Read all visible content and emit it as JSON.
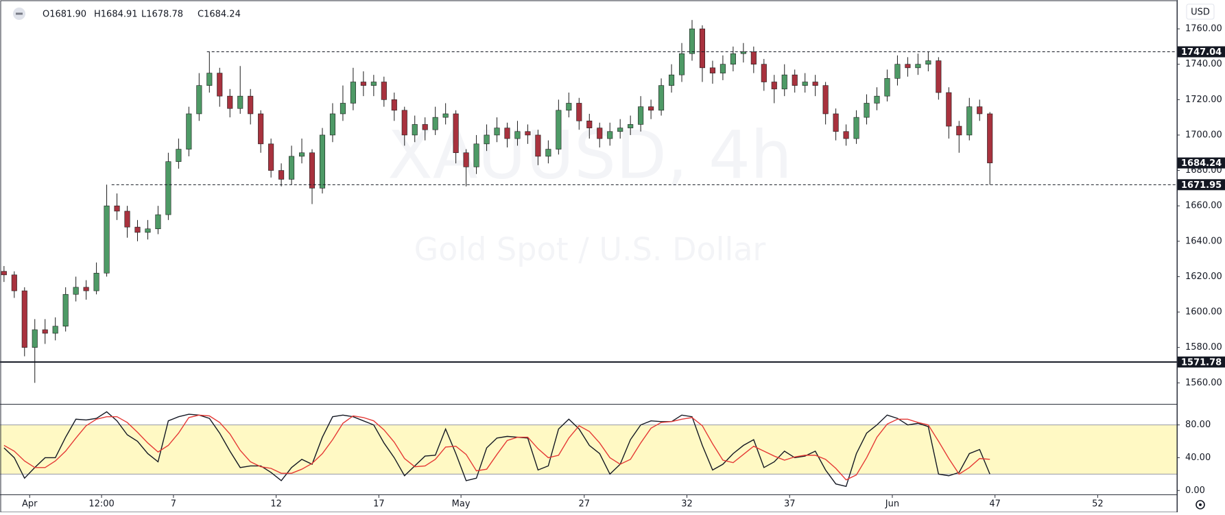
{
  "chart_data": [
    {
      "type": "candlestick",
      "title": "XAUUSD, 4h",
      "subtitle": "Gold Spot / U.S. Dollar",
      "currency": "USD",
      "ohlc_legend": [
        "O1681.90",
        "H1684.91",
        "L1678.78",
        "C1684.24"
      ],
      "x": [
        -1.25,
        -0.75,
        -0.25,
        0.25,
        0.75,
        1.25,
        1.75,
        2.25,
        2.75,
        3.25,
        3.75,
        4.25,
        4.75,
        5.25,
        5.75,
        6.25,
        6.75,
        7.25,
        7.75,
        8.25,
        8.75,
        9.25,
        9.75,
        10.25,
        10.75,
        11.25,
        11.75,
        12.25,
        12.75,
        13.25,
        13.75,
        14.25,
        14.75,
        15.25,
        15.75,
        16.25,
        16.75,
        17.25,
        17.75,
        18.25,
        18.75,
        19.25,
        19.75,
        20.25,
        20.75,
        21.25,
        21.75,
        22.25,
        22.75,
        23.25,
        23.75,
        24.25,
        24.75,
        25.25,
        25.75,
        26.25,
        26.75,
        27.25,
        27.75,
        28.25,
        28.75,
        29.25,
        29.75,
        30.25,
        30.75,
        31.25,
        31.75,
        32.25,
        32.75,
        33.25,
        33.75,
        34.25,
        34.75,
        35.25,
        35.75,
        36.25,
        36.75,
        37.25,
        37.75,
        38.25,
        38.75,
        39.25,
        39.75,
        40.25,
        40.75,
        41.25,
        41.75,
        42.25,
        42.75,
        43.25,
        43.75,
        44.25,
        44.75,
        45.25,
        45.75,
        46.25,
        46.75
      ],
      "open": [
        1623,
        1621,
        1612,
        1580,
        1590,
        1588,
        1592,
        1610,
        1614,
        1612,
        1622,
        1660,
        1657,
        1648,
        1645,
        1647,
        1655,
        1685,
        1692,
        1712,
        1728,
        1735,
        1722,
        1715,
        1722,
        1712,
        1695,
        1680,
        1675,
        1688,
        1690,
        1670,
        1700,
        1712,
        1718,
        1730,
        1728,
        1730,
        1720,
        1714,
        1700,
        1706,
        1703,
        1710,
        1712,
        1690,
        1682,
        1695,
        1700,
        1704,
        1698,
        1702,
        1700,
        1688,
        1692,
        1714,
        1718,
        1708,
        1704,
        1698,
        1702,
        1704,
        1706,
        1716,
        1714,
        1728,
        1734,
        1746,
        1760,
        1738,
        1735,
        1740,
        1746,
        1747,
        1740,
        1730,
        1726,
        1734,
        1728,
        1730,
        1728,
        1712,
        1702,
        1698,
        1710,
        1718,
        1722,
        1732,
        1740,
        1738,
        1740,
        1742,
        1724,
        1705,
        1700,
        1716,
        1712
      ],
      "high": [
        1626,
        1623,
        1614,
        1596,
        1596,
        1597,
        1614,
        1620,
        1618,
        1628,
        1672,
        1667,
        1660,
        1652,
        1652,
        1660,
        1690,
        1698,
        1716,
        1735,
        1747,
        1738,
        1726,
        1739,
        1726,
        1714,
        1698,
        1684,
        1694,
        1698,
        1692,
        1704,
        1718,
        1728,
        1738,
        1736,
        1734,
        1733,
        1724,
        1716,
        1711,
        1710,
        1716,
        1718,
        1714,
        1692,
        1700,
        1706,
        1710,
        1707,
        1708,
        1706,
        1703,
        1697,
        1720,
        1724,
        1721,
        1712,
        1707,
        1707,
        1709,
        1711,
        1722,
        1720,
        1732,
        1740,
        1752,
        1765,
        1762,
        1742,
        1745,
        1750,
        1752,
        1750,
        1743,
        1734,
        1740,
        1737,
        1735,
        1734,
        1730,
        1715,
        1706,
        1714,
        1723,
        1727,
        1737,
        1745,
        1744,
        1746,
        1747,
        1744,
        1727,
        1708,
        1721,
        1720,
        1713
      ],
      "low": [
        1617,
        1608,
        1575,
        1560,
        1582,
        1584,
        1589,
        1606,
        1607,
        1610,
        1620,
        1652,
        1642,
        1640,
        1641,
        1644,
        1652,
        1681,
        1688,
        1708,
        1724,
        1716,
        1710,
        1712,
        1706,
        1690,
        1676,
        1671,
        1672,
        1684,
        1661,
        1667,
        1696,
        1708,
        1714,
        1722,
        1722,
        1716,
        1708,
        1694,
        1696,
        1697,
        1700,
        1706,
        1684,
        1671,
        1678,
        1691,
        1696,
        1693,
        1694,
        1695,
        1683,
        1684,
        1689,
        1710,
        1703,
        1698,
        1693,
        1694,
        1698,
        1700,
        1702,
        1709,
        1711,
        1724,
        1730,
        1742,
        1730,
        1729,
        1731,
        1736,
        1741,
        1735,
        1725,
        1718,
        1722,
        1724,
        1724,
        1722,
        1706,
        1697,
        1694,
        1695,
        1706,
        1714,
        1719,
        1728,
        1733,
        1734,
        1736,
        1720,
        1698,
        1690,
        1697,
        1708,
        1671.95
      ],
      "close": [
        1621,
        1612,
        1580,
        1590,
        1588,
        1592,
        1610,
        1614,
        1612,
        1622,
        1660,
        1657,
        1648,
        1645,
        1647,
        1655,
        1685,
        1692,
        1712,
        1728,
        1735,
        1722,
        1715,
        1722,
        1712,
        1695,
        1680,
        1675,
        1688,
        1690,
        1670,
        1700,
        1712,
        1718,
        1730,
        1728,
        1730,
        1720,
        1714,
        1700,
        1706,
        1703,
        1710,
        1712,
        1690,
        1682,
        1695,
        1700,
        1704,
        1698,
        1702,
        1700,
        1688,
        1692,
        1714,
        1718,
        1708,
        1704,
        1698,
        1702,
        1704,
        1706,
        1716,
        1714,
        1728,
        1734,
        1746,
        1760,
        1738,
        1735,
        1740,
        1746,
        1747,
        1740,
        1730,
        1726,
        1734,
        1728,
        1730,
        1728,
        1712,
        1702,
        1698,
        1710,
        1718,
        1722,
        1732,
        1740,
        1738,
        1740,
        1742,
        1724,
        1705,
        1700,
        1716,
        1712,
        1684.24
      ],
      "up_color": "#4e9a66",
      "down_color": "#a8323e",
      "wick_color": "#1a1a1a",
      "xlim": [
        -1.445,
        55.86
      ],
      "xticks": [
        {
          "value": 0,
          "label": "Apr"
        },
        {
          "value": 3.5,
          "label": "12:00"
        },
        7,
        12,
        17,
        {
          "value": 21,
          "label": "May"
        },
        27,
        32,
        37,
        {
          "value": 42,
          "label": "Jun"
        },
        47,
        52
      ],
      "ylim": [
        1548.1,
        1776.3
      ],
      "yticks": [
        {
          "value": 1560,
          "label": "1560.00"
        },
        {
          "value": 1580,
          "label": "1580.00"
        },
        {
          "value": 1600,
          "label": "1600.00"
        },
        {
          "value": 1620,
          "label": "1620.00"
        },
        {
          "value": 1640,
          "label": "1640.00"
        },
        {
          "value": 1660,
          "label": "1660.00"
        },
        {
          "value": 1680,
          "label": "1680.00"
        },
        {
          "value": 1700,
          "label": "1700.00"
        },
        {
          "value": 1720,
          "label": "1720.00"
        },
        {
          "value": 1740,
          "label": "1740.00"
        },
        {
          "value": 1760,
          "label": "1760.00"
        }
      ],
      "levels": [
        {
          "value": 1747.04,
          "style": "dashed",
          "from": 8.63
        },
        {
          "value": 1671.95,
          "style": "dashed",
          "from": 3.99
        },
        {
          "value": 1571.78,
          "style": "solid"
        }
      ]
    },
    {
      "type": "line",
      "series": [
        {
          "color": "#131722",
          "values": [
            52,
            40,
            15,
            28,
            40,
            40,
            65,
            87,
            86,
            88,
            96,
            85,
            68,
            60,
            45,
            35,
            85,
            90,
            93,
            92,
            88,
            70,
            48,
            28,
            30,
            30,
            22,
            12,
            28,
            38,
            32,
            65,
            90,
            92,
            90,
            85,
            80,
            58,
            40,
            18,
            30,
            42,
            43,
            75,
            45,
            12,
            15,
            52,
            64,
            66,
            65,
            64,
            25,
            30,
            75,
            87,
            75,
            55,
            45,
            20,
            32,
            62,
            80,
            85,
            84,
            84,
            92,
            90,
            55,
            25,
            32,
            45,
            55,
            62,
            28,
            35,
            48,
            40,
            42,
            48,
            25,
            8,
            5,
            45,
            70,
            80,
            92,
            88,
            80,
            82,
            78,
            20,
            18,
            22,
            45,
            50,
            20
          ]
        },
        {
          "color": "#e53935",
          "values": [
            55,
            48,
            36,
            28,
            28,
            36,
            48,
            64,
            79,
            87,
            90,
            90,
            83,
            71,
            58,
            47,
            55,
            70,
            89,
            92,
            91,
            83,
            69,
            49,
            35,
            29,
            27,
            21,
            21,
            26,
            33,
            45,
            62,
            82,
            91,
            89,
            85,
            74,
            59,
            39,
            29,
            30,
            38,
            53,
            54,
            44,
            24,
            26,
            44,
            61,
            65,
            65,
            51,
            40,
            43,
            64,
            79,
            72,
            58,
            40,
            32,
            38,
            58,
            76,
            83,
            84,
            87,
            89,
            79,
            57,
            37,
            34,
            44,
            54,
            48,
            42,
            37,
            41,
            43,
            43,
            38,
            27,
            13,
            19,
            40,
            65,
            81,
            87,
            87,
            83,
            80,
            60,
            39,
            20,
            28,
            39,
            38
          ]
        }
      ],
      "band": {
        "range": [
          20,
          80
        ],
        "color": "#fff9c4"
      },
      "ylim": [
        -4.8,
        104.8
      ],
      "yticks": [
        {
          "value": 0,
          "label": "0.00"
        },
        {
          "value": 40,
          "label": "40.00"
        },
        {
          "value": 80,
          "label": "80.00"
        }
      ]
    }
  ]
}
